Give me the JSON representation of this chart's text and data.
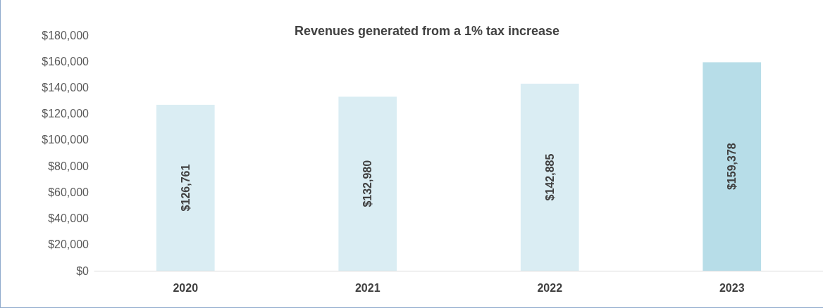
{
  "chart_data": {
    "type": "bar",
    "title": "Revenues generated from a 1% tax increase",
    "categories": [
      "2020",
      "2021",
      "2022",
      "2023"
    ],
    "values": [
      126761,
      132980,
      142885,
      159378
    ],
    "colors": [
      "#daedf3",
      "#daedf3",
      "#daedf3",
      "#b7dde8"
    ],
    "value_labels": [
      "$126,761",
      "$132,980",
      "$142,885",
      "$159,378"
    ],
    "ylim": [
      0,
      180000
    ],
    "yticks": [
      {
        "value": 0,
        "label": "$0"
      },
      {
        "value": 20000,
        "label": "$20,000"
      },
      {
        "value": 40000,
        "label": "$40,000"
      },
      {
        "value": 60000,
        "label": "$60,000"
      },
      {
        "value": 80000,
        "label": "$80,000"
      },
      {
        "value": 100000,
        "label": "$100,000"
      },
      {
        "value": 120000,
        "label": "$120,000"
      },
      {
        "value": 140000,
        "label": "$140,000"
      },
      {
        "value": 160000,
        "label": "$160,000"
      },
      {
        "value": 180000,
        "label": "$180,000"
      }
    ],
    "grid": false
  }
}
